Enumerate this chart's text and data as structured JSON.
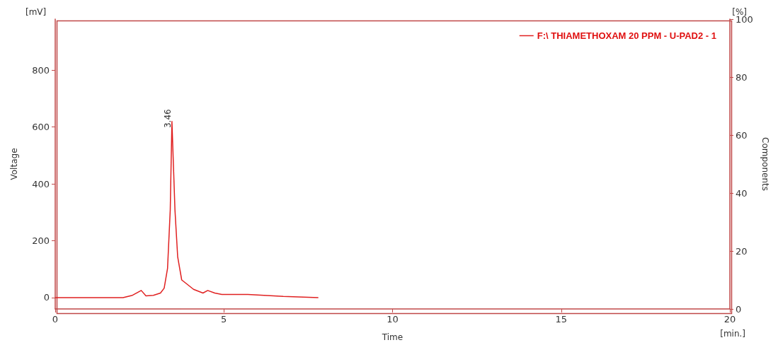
{
  "chart_data": {
    "type": "line",
    "xlabel": "Time",
    "ylabel": "Voltage",
    "y2label": "Components",
    "x": [
      0,
      1,
      2.01,
      2.29,
      2.55,
      2.69,
      2.91,
      3.12,
      3.23,
      3.33,
      3.41,
      3.46,
      3.55,
      3.63,
      3.75,
      3.89,
      4.1,
      4.38,
      4.52,
      4.73,
      4.94,
      5.71,
      6.76,
      7.8
    ],
    "series": [
      {
        "name": "F:\\ THIAMETHOXAM 20 PPM - U-PAD2 - 1",
        "color": "#e02020",
        "values": [
          0,
          0,
          0,
          8,
          25,
          6,
          8,
          16,
          33,
          103,
          308,
          620,
          308,
          144,
          62,
          49,
          29,
          16,
          25,
          16,
          11,
          11,
          4,
          0
        ]
      }
    ],
    "xlim": [
      0,
      20
    ],
    "xticks": [
      0,
      5,
      10,
      15,
      20
    ],
    "ylim": [
      -40,
      980
    ],
    "yticks": [
      0,
      200,
      400,
      600,
      800
    ],
    "y2lim": [
      0,
      100
    ],
    "y2ticks": [
      0,
      20,
      40,
      60,
      80,
      100
    ],
    "annotations": [
      {
        "text": "3.46",
        "x": 3.46,
        "y": 620
      },
      "[mV]",
      "[%]",
      "[min.]"
    ],
    "legend": "top right",
    "grid": false,
    "marker": "none",
    "line_style": "solid"
  }
}
